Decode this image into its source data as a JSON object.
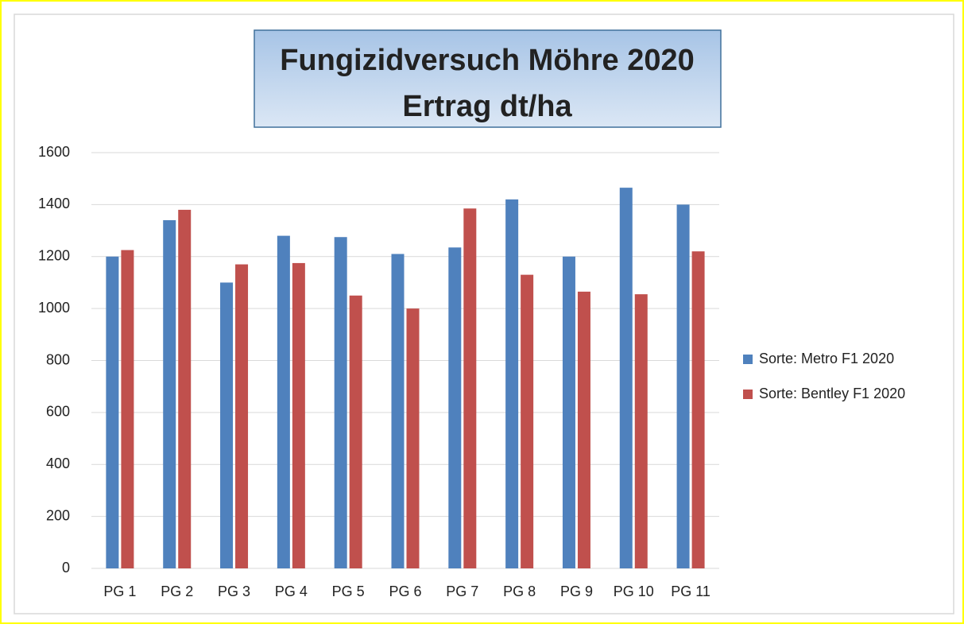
{
  "chart_data": {
    "type": "bar",
    "title": "Fungizidversuch Möhre 2020",
    "subtitle": "Ertrag dt/ha",
    "categories": [
      "PG 1",
      "PG 2",
      "PG 3",
      "PG 4",
      "PG 5",
      "PG 6",
      "PG 7",
      "PG 8",
      "PG 9",
      "PG 10",
      "PG 11"
    ],
    "series": [
      {
        "name": "Sorte: Metro F1 2020",
        "color": "#4f81bd",
        "values": [
          1200,
          1340,
          1100,
          1280,
          1275,
          1210,
          1235,
          1420,
          1200,
          1465,
          1400
        ]
      },
      {
        "name": "Sorte: Bentley F1 2020",
        "color": "#c0504d",
        "values": [
          1225,
          1380,
          1170,
          1175,
          1050,
          1000,
          1385,
          1130,
          1065,
          1055,
          1220
        ]
      }
    ],
    "ylim": [
      0,
      1600
    ],
    "yticks": [
      0,
      200,
      400,
      600,
      800,
      1000,
      1200,
      1400,
      1600
    ],
    "grid": true,
    "legend": "right"
  }
}
